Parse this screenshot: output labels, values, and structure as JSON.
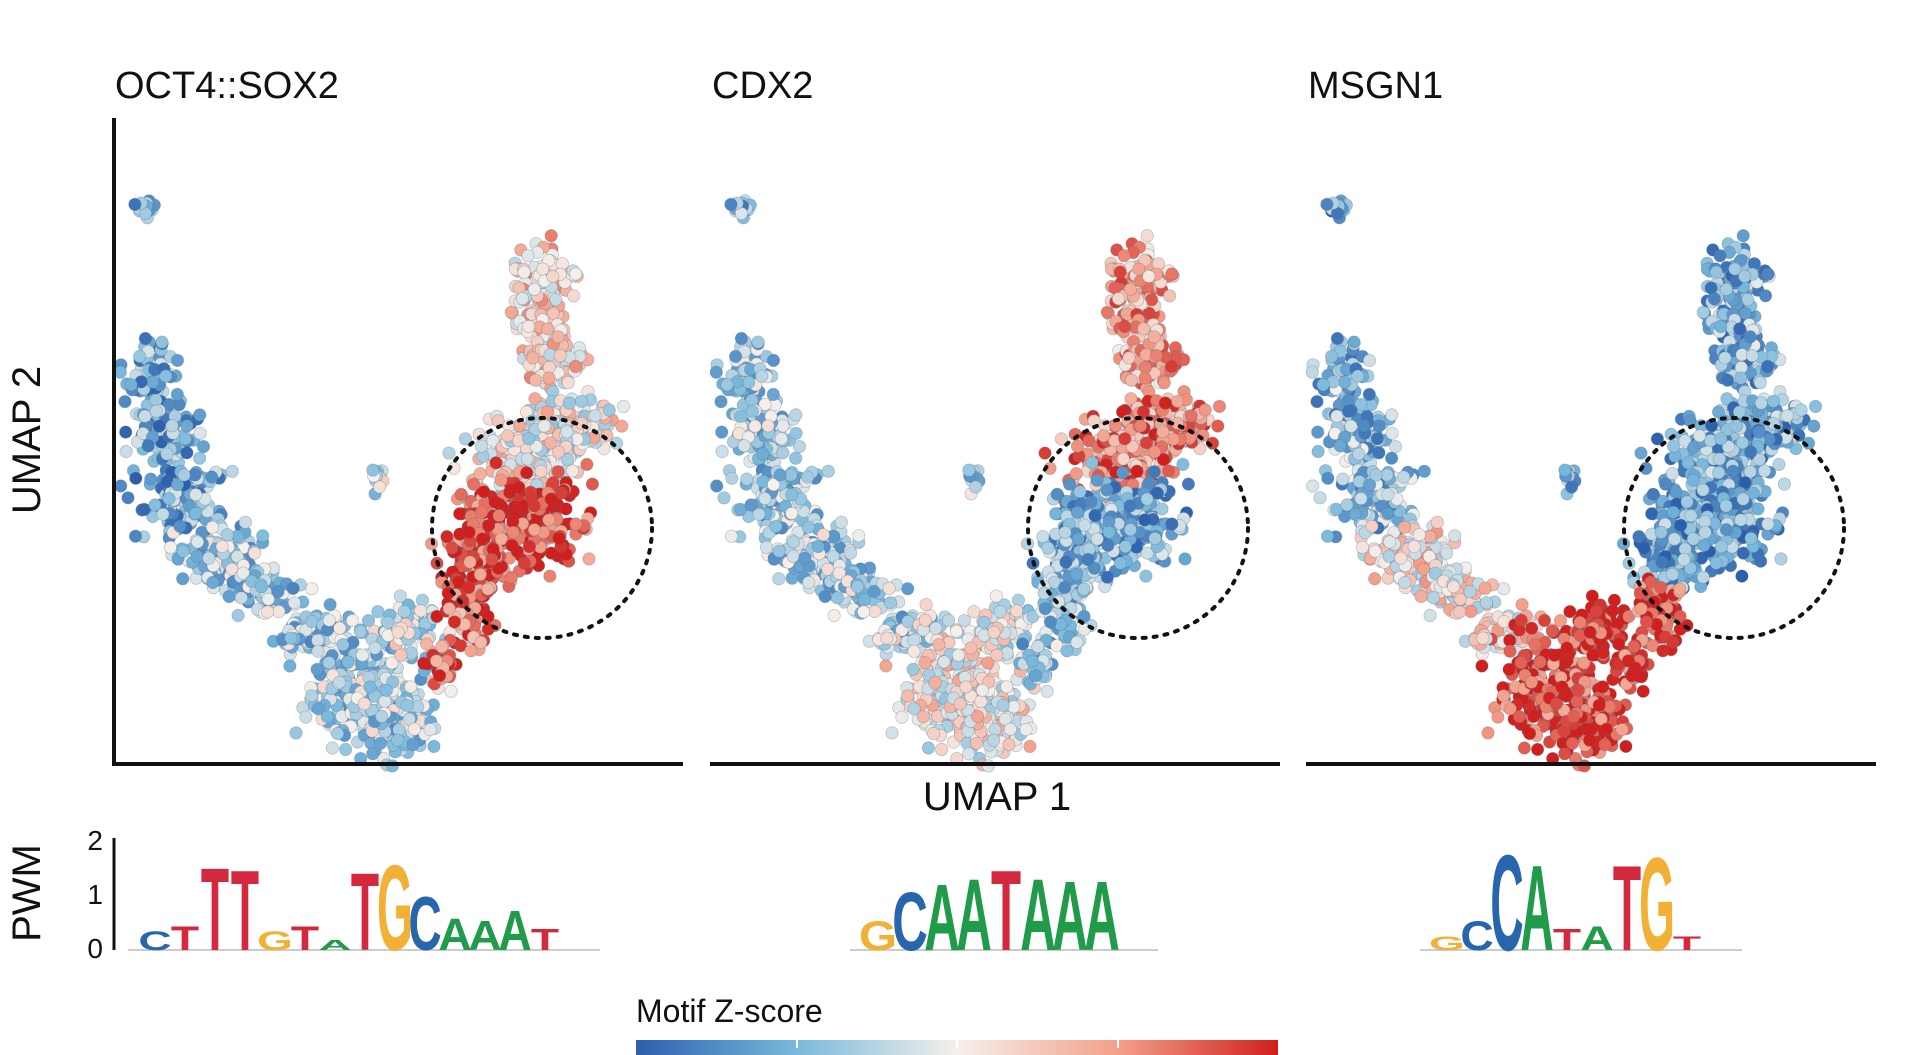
{
  "chart_data": {
    "type": "scatter",
    "panels": [
      {
        "title": "OCT4::SOX2",
        "pattern": "oct4",
        "highlight": "circle"
      },
      {
        "title": "CDX2",
        "pattern": "cdx2",
        "highlight": "circle"
      },
      {
        "title": "MSGN1",
        "pattern": "msgn1",
        "highlight": "circle"
      }
    ],
    "xlabel": "UMAP 1",
    "ylabel": "UMAP 2",
    "pwm": {
      "ylabel": "PWM",
      "yticks": [
        "0",
        "1",
        "2"
      ],
      "ylim": [
        0,
        2
      ],
      "motifs": [
        {
          "name": "OCT4::SOX2",
          "sequence": "CTTTGTATGCAAAT"
        },
        {
          "name": "CDX2",
          "sequence": "GCAATAAA"
        },
        {
          "name": "MSGN1",
          "sequence": "GCCATATGT"
        }
      ]
    },
    "colorbar": {
      "label": "Motif Z-score",
      "colors": [
        "#2b5fad",
        "#79b9dc",
        "#f5f0eb",
        "#f4a08a",
        "#d01f1c"
      ]
    },
    "legend": "bottom"
  },
  "nucleotide_colors": {
    "A": "#1f9b4a",
    "C": "#2766ad",
    "G": "#f2b134",
    "T": "#d3283e"
  }
}
